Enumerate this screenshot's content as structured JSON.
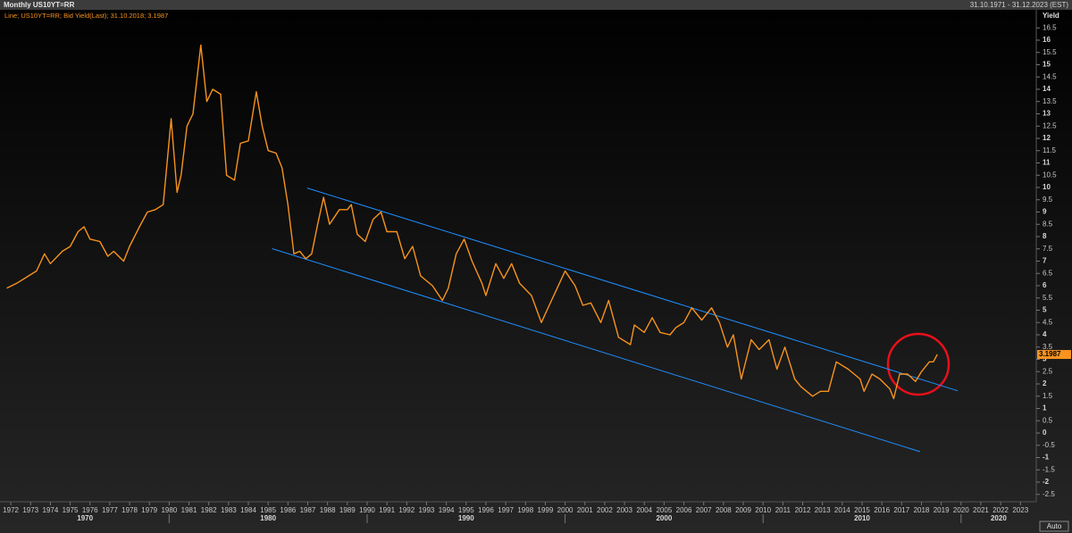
{
  "chart_data": {
    "type": "line",
    "title": "Monthly US10YT=RR",
    "date_range": "31.10.1971 - 31.12.2023 (EST)",
    "legend_text": "Line; US10YT=RR; Bid Yield(Last); 31.10.2018; 3.1987",
    "y_axis_label": "Yield",
    "color": "#f7931e",
    "x": [
      1971.8,
      1972.3,
      1972.9,
      1973.3,
      1973.7,
      1974.0,
      1974.6,
      1975.0,
      1975.4,
      1975.7,
      1976.0,
      1976.5,
      1976.9,
      1977.2,
      1977.7,
      1978.0,
      1978.5,
      1978.9,
      1979.3,
      1979.7,
      1980.1,
      1980.4,
      1980.6,
      1980.9,
      1981.2,
      1981.6,
      1981.9,
      1982.2,
      1982.6,
      1982.9,
      1983.3,
      1983.6,
      1984.0,
      1984.4,
      1984.7,
      1985.0,
      1985.4,
      1985.7,
      1986.0,
      1986.3,
      1986.6,
      1986.9,
      1987.2,
      1987.5,
      1987.8,
      1988.1,
      1988.6,
      1989.0,
      1989.2,
      1989.5,
      1989.9,
      1990.3,
      1990.7,
      1991.0,
      1991.5,
      1991.9,
      1992.3,
      1992.7,
      1993.3,
      1993.8,
      1994.1,
      1994.5,
      1994.9,
      1995.3,
      1995.8,
      1996.0,
      1996.5,
      1996.9,
      1997.3,
      1997.7,
      1998.3,
      1998.8,
      1999.2,
      1999.6,
      2000.0,
      2000.5,
      2000.9,
      2001.3,
      2001.8,
      2002.2,
      2002.7,
      2003.3,
      2003.5,
      2004.0,
      2004.4,
      2004.8,
      2005.3,
      2005.6,
      2006.0,
      2006.4,
      2006.9,
      2007.4,
      2007.8,
      2008.2,
      2008.5,
      2008.9,
      2009.4,
      2009.8,
      2010.3,
      2010.7,
      2011.1,
      2011.6,
      2011.9,
      2012.5,
      2012.9,
      2013.3,
      2013.7,
      2014.3,
      2014.9,
      2015.1,
      2015.5,
      2015.9,
      2016.4,
      2016.6,
      2016.9,
      2017.3,
      2017.7,
      2018.0,
      2018.4,
      2018.6,
      2018.8
    ],
    "values": [
      5.9,
      6.1,
      6.4,
      6.6,
      7.3,
      6.9,
      7.4,
      7.6,
      8.2,
      8.4,
      7.9,
      7.8,
      7.2,
      7.4,
      7.0,
      7.6,
      8.4,
      9.0,
      9.1,
      9.3,
      12.8,
      9.8,
      10.5,
      12.5,
      13.0,
      15.8,
      13.5,
      14.0,
      13.8,
      10.5,
      10.3,
      11.8,
      11.9,
      13.9,
      12.5,
      11.5,
      11.4,
      10.8,
      9.3,
      7.3,
      7.4,
      7.1,
      7.3,
      8.5,
      9.6,
      8.5,
      9.1,
      9.1,
      9.3,
      8.1,
      7.8,
      8.7,
      9.0,
      8.2,
      8.2,
      7.1,
      7.6,
      6.4,
      6.0,
      5.4,
      5.9,
      7.3,
      7.9,
      7.0,
      6.1,
      5.6,
      6.9,
      6.3,
      6.9,
      6.1,
      5.6,
      4.5,
      5.2,
      5.9,
      6.6,
      6.0,
      5.2,
      5.3,
      4.5,
      5.4,
      3.9,
      3.6,
      4.4,
      4.1,
      4.7,
      4.1,
      4.0,
      4.3,
      4.5,
      5.1,
      4.6,
      5.1,
      4.5,
      3.5,
      4.0,
      2.2,
      3.8,
      3.4,
      3.8,
      2.6,
      3.5,
      2.2,
      1.9,
      1.5,
      1.7,
      1.7,
      2.9,
      2.6,
      2.2,
      1.7,
      2.4,
      2.2,
      1.8,
      1.4,
      2.4,
      2.4,
      2.1,
      2.5,
      2.9,
      2.9,
      3.2
    ],
    "trend_lines": [
      {
        "color": "#1e8fff",
        "x": [
          1986.97,
          2019.83
        ],
        "values": [
          9.98,
          1.72
        ]
      },
      {
        "color": "#1e8fff",
        "x": [
          1985.2,
          2017.93
        ],
        "values": [
          7.51,
          -0.76
        ]
      }
    ],
    "last_value": 3.1987,
    "xlim": [
      1971.5,
      2023.8
    ],
    "xticks": [
      1972,
      1973,
      1974,
      1975,
      1976,
      1977,
      1978,
      1979,
      1980,
      1981,
      1982,
      1983,
      1984,
      1985,
      1986,
      1987,
      1988,
      1989,
      1990,
      1991,
      1992,
      1993,
      1994,
      1995,
      1996,
      1997,
      1998,
      1999,
      2000,
      2001,
      2002,
      2003,
      2004,
      2005,
      2006,
      2007,
      2008,
      2009,
      2010,
      2011,
      2012,
      2013,
      2014,
      2015,
      2016,
      2017,
      2018,
      2019,
      2020,
      2021,
      2022,
      2023
    ],
    "decade_labels": [
      1970,
      1980,
      1990,
      2000,
      2010,
      2020
    ],
    "ylim": [
      -2.8,
      17.2
    ],
    "yticks": [
      16.5,
      16,
      15.5,
      15,
      14.5,
      14,
      13.5,
      13,
      12.5,
      12,
      11.5,
      11,
      10.5,
      10,
      9.5,
      9,
      8.5,
      8,
      7.5,
      7,
      6.5,
      6,
      5.5,
      5,
      4.5,
      4,
      3.5,
      3,
      2.5,
      2,
      1.5,
      1,
      0.5,
      0,
      -0.5,
      -1,
      -1.5,
      -2,
      -2.5
    ],
    "auto_button": "Auto"
  }
}
